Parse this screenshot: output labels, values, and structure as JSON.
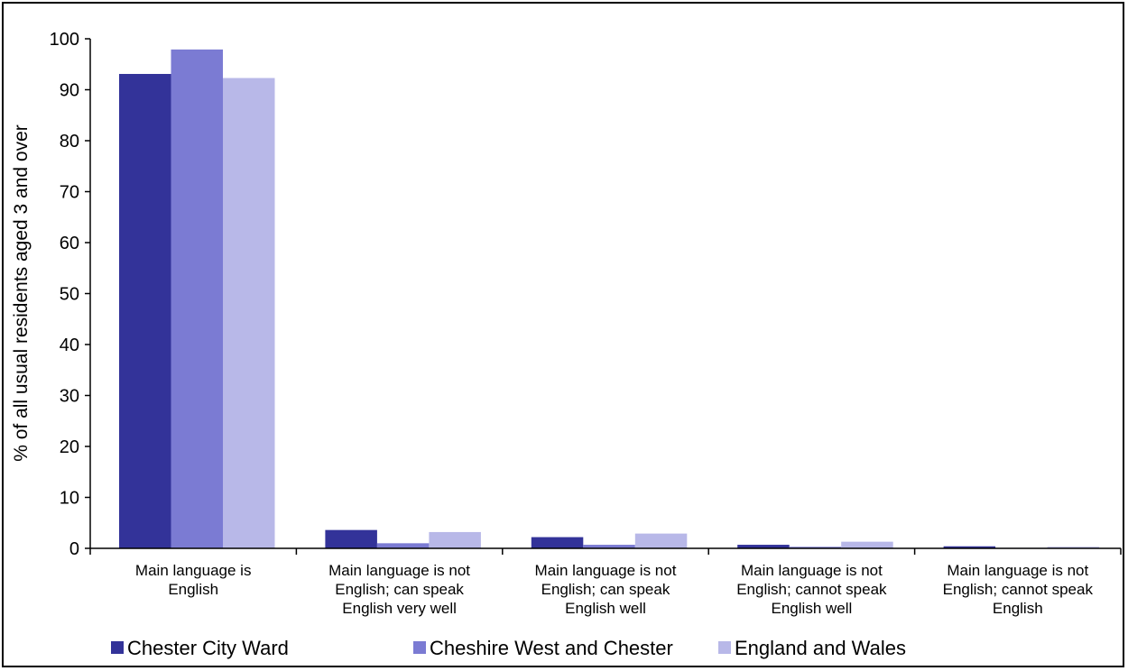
{
  "chart_data": {
    "type": "bar",
    "title": "",
    "xlabel": "",
    "ylabel": "% of all usual residents aged 3 and over",
    "ylim": [
      0,
      100
    ],
    "yticks": [
      0,
      10,
      20,
      30,
      40,
      50,
      60,
      70,
      80,
      90,
      100
    ],
    "grid": false,
    "legend_position": "bottom",
    "categories": [
      [
        "Main language is",
        "English"
      ],
      [
        "Main language is not",
        "English; can speak",
        "English very well"
      ],
      [
        "Main language is not",
        "English; can speak",
        "English well"
      ],
      [
        "Main language is not",
        "English; cannot speak",
        "English well"
      ],
      [
        "Main language is not",
        "English; cannot speak",
        "English"
      ]
    ],
    "series": [
      {
        "name": "Chester City Ward",
        "color": "#333399",
        "values": [
          93.1,
          3.6,
          2.2,
          0.7,
          0.4
        ]
      },
      {
        "name": "Cheshire West and Chester",
        "color": "#7b7bd3",
        "values": [
          97.9,
          1.0,
          0.7,
          0.3,
          0.1
        ]
      },
      {
        "name": "England and Wales",
        "color": "#b8b8e8",
        "values": [
          92.3,
          3.2,
          2.9,
          1.3,
          0.3
        ]
      }
    ]
  }
}
